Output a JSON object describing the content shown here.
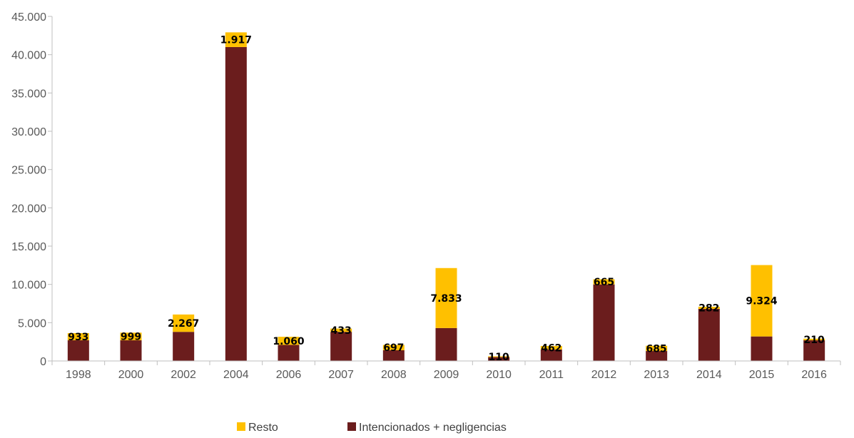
{
  "chart_data": {
    "type": "bar",
    "stacked": true,
    "categories": [
      "1998",
      "2000",
      "2002",
      "2004",
      "2006",
      "2007",
      "2008",
      "2009",
      "2010",
      "2011",
      "2012",
      "2013",
      "2014",
      "2015",
      "2016"
    ],
    "series": [
      {
        "name": "Intencionados + negligencias",
        "color": "#6b1d1d",
        "values": [
          2700,
          2700,
          3800,
          41000,
          2100,
          3800,
          1400,
          4300,
          500,
          1500,
          10000,
          1300,
          6800,
          3200,
          2700
        ]
      },
      {
        "name": "Resto",
        "color": "#ffc000",
        "values": [
          933,
          999,
          2267,
          1917,
          1060,
          433,
          697,
          7833,
          110,
          462,
          665,
          685,
          282,
          9324,
          210
        ]
      }
    ],
    "data_labels": [
      "933",
      "999",
      "2.267",
      "1.917",
      "1.060",
      "433",
      "697",
      "7.833",
      "110",
      "462",
      "665",
      "685",
      "282",
      "9.324",
      "210"
    ],
    "yticks": [
      "0",
      "5.000",
      "10.000",
      "15.000",
      "20.000",
      "25.000",
      "30.000",
      "35.000",
      "40.000",
      "45.000"
    ],
    "ylim": [
      0,
      45000
    ],
    "title": "",
    "xlabel": "",
    "ylabel": "",
    "grid": false,
    "legend_position": "bottom",
    "legend": [
      {
        "name": "Resto",
        "color": "#ffc000"
      },
      {
        "name": "Intencionados + negligencias",
        "color": "#6b1d1d"
      }
    ]
  }
}
